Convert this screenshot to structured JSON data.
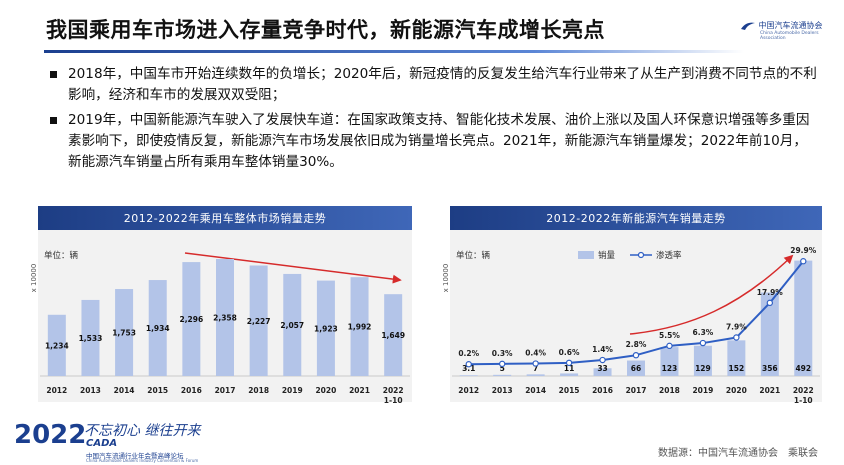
{
  "header": {
    "title": "我国乘用车市场进入存量竞争时代，新能源汽车成增长亮点",
    "logo_name": "中国汽车流通协会",
    "logo_english": "China Automobile Dealers Association"
  },
  "bullets": [
    "2018年，中国车市开始连续数年的负增长；2020年后，新冠疫情的反复发生给汽车行业带来了从生产到消费不同节点的不利影响，经济和车市的发展双双受阻；",
    "2019年，中国新能源汽车驶入了发展快车道：在国家政策支持、智能化技术发展、油价上涨以及国人环保意识增强等多重因素影响下，即使疫情反复，新能源汽车市场发展依旧成为销量增长亮点。2021年，新能源汽车销量爆发；2022年前10月，新能源汽车销量占所有乘用车整体销量30%。"
  ],
  "chart_data": [
    {
      "type": "bar",
      "title": "2012-2022年乘用车整体市场销量走势",
      "unit_label": "单位：辆",
      "y_label": "x 10000",
      "categories": [
        "2012",
        "2013",
        "2014",
        "2015",
        "2016",
        "2017",
        "2018",
        "2019",
        "2020",
        "2021",
        "2022 1-10"
      ],
      "values": [
        1234,
        1533,
        1753,
        1934,
        2296,
        2358,
        2227,
        2057,
        1923,
        1992,
        1649
      ],
      "value_labels": [
        "1,234",
        "1,533",
        "1,753",
        "1,934",
        "2,296",
        "2,358",
        "2,227",
        "2,057",
        "1,923",
        "1,992",
        "1,649"
      ],
      "color": "#b3c4e8",
      "ylim": [
        0,
        2600
      ]
    },
    {
      "type": "bar",
      "title": "2012-2022年新能源汽车销量走势",
      "unit_label": "单位：辆",
      "y_label": "x 10000",
      "categories": [
        "2012",
        "2013",
        "2014",
        "2015",
        "2016",
        "2017",
        "2018",
        "2019",
        "2020",
        "2021",
        "2022 1-10"
      ],
      "series": [
        {
          "name": "销量",
          "color": "#b3c4e8",
          "values": [
            3.1,
            5,
            7,
            11,
            33,
            66,
            123,
            129,
            152,
            356,
            492
          ]
        },
        {
          "name": "渗透率",
          "type": "line",
          "axis": "y2",
          "color": "#2f5fc4",
          "values": [
            0.2,
            0.3,
            0.4,
            0.6,
            1.4,
            2.8,
            5.5,
            6.3,
            7.9,
            17.9,
            29.9
          ],
          "value_labels": [
            "0.2%",
            "0.3%",
            "0.4%",
            "0.6%",
            "1.4%",
            "2.8%",
            "5.5%",
            "6.3%",
            "7.9%",
            "17.9%",
            "29.9%"
          ]
        }
      ],
      "ylim": [
        0,
        550
      ],
      "y2lim": [
        -3.2,
        34
      ],
      "legend": "top"
    }
  ],
  "footer": {
    "year": "2022",
    "slogan": "不忘初心 继往开来",
    "brand": "CADA",
    "event": "中国汽车流通行业年会暨高峰论坛",
    "event_english": "China Automobile Dealers Industry Convention & Forum",
    "source": "数据源：中国汽车流通协会　乘联会"
  }
}
